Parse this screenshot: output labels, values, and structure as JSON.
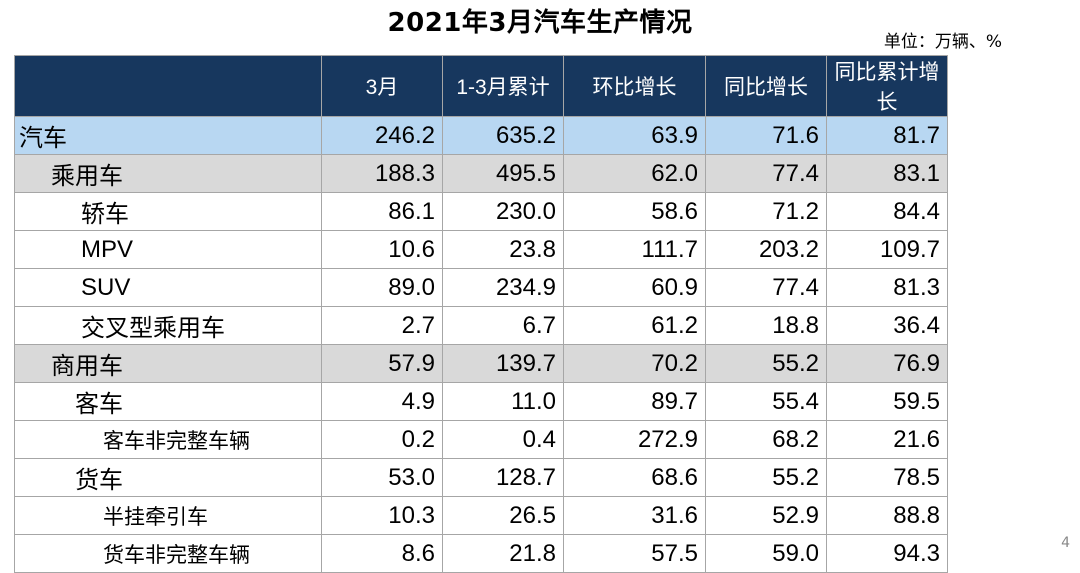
{
  "title": "2021年3月汽车生产情况",
  "unit": "单位：万辆、%",
  "page_number": "4",
  "table": {
    "headers": [
      "",
      "3月",
      "1-3月累计",
      "环比增长",
      "同比增长",
      "同比累计增长"
    ],
    "rows": [
      {
        "label": "汽车",
        "values": [
          "246.2",
          "635.2",
          "63.9",
          "71.6",
          "81.7"
        ]
      },
      {
        "label": "乘用车",
        "values": [
          "188.3",
          "495.5",
          "62.0",
          "77.4",
          "83.1"
        ]
      },
      {
        "label": "轿车",
        "values": [
          "86.1",
          "230.0",
          "58.6",
          "71.2",
          "84.4"
        ]
      },
      {
        "label": "MPV",
        "values": [
          "10.6",
          "23.8",
          "111.7",
          "203.2",
          "109.7"
        ]
      },
      {
        "label": "SUV",
        "values": [
          "89.0",
          "234.9",
          "60.9",
          "77.4",
          "81.3"
        ]
      },
      {
        "label": "交叉型乘用车",
        "values": [
          "2.7",
          "6.7",
          "61.2",
          "18.8",
          "36.4"
        ]
      },
      {
        "label": "商用车",
        "values": [
          "57.9",
          "139.7",
          "70.2",
          "55.2",
          "76.9"
        ]
      },
      {
        "label": "客车",
        "values": [
          "4.9",
          "11.0",
          "89.7",
          "55.4",
          "59.5"
        ]
      },
      {
        "label": "客车非完整车辆",
        "values": [
          "0.2",
          "0.4",
          "272.9",
          "68.2",
          "21.6"
        ]
      },
      {
        "label": "货车",
        "values": [
          "53.0",
          "128.7",
          "68.6",
          "55.2",
          "78.5"
        ]
      },
      {
        "label": "半挂牵引车",
        "values": [
          "10.3",
          "26.5",
          "31.6",
          "52.9",
          "88.8"
        ]
      },
      {
        "label": "货车非完整车辆",
        "values": [
          "8.6",
          "21.8",
          "57.5",
          "59.0",
          "94.3"
        ]
      }
    ]
  }
}
